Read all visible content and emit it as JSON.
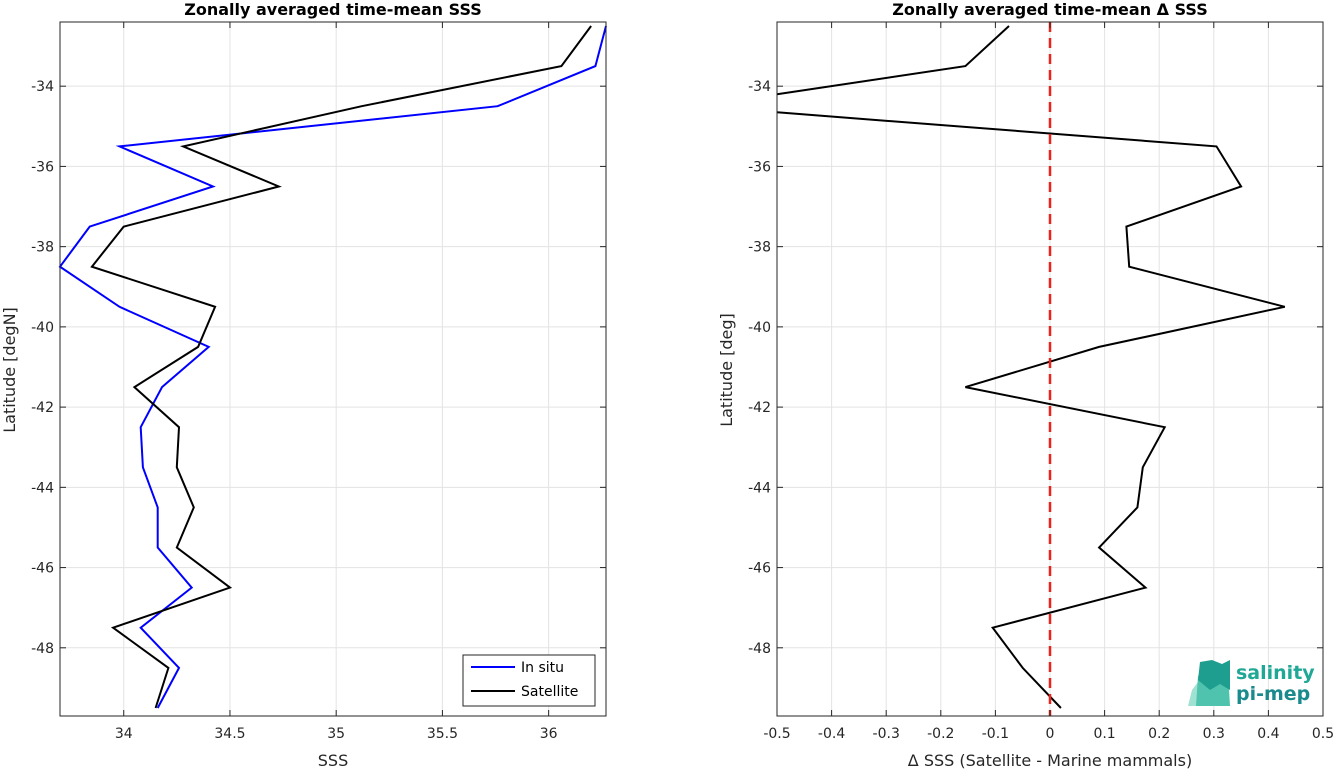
{
  "chart_data": [
    {
      "type": "line",
      "title": "Zonally averaged time-mean SSS",
      "xlabel": "SSS",
      "ylabel": "Latitude [degN]",
      "xlim": [
        33.7,
        36.27
      ],
      "ylim": [
        -49.7,
        -32.4
      ],
      "xticks": [
        34,
        34.5,
        35,
        35.5,
        36
      ],
      "xtick_labels": [
        "34",
        "34.5",
        "35",
        "35.5",
        "36"
      ],
      "yticks": [
        -48,
        -46,
        -44,
        -42,
        -40,
        -38,
        -36,
        -34
      ],
      "ytick_labels": [
        "-48",
        "-46",
        "-44",
        "-42",
        "-40",
        "-38",
        "-36",
        "-34"
      ],
      "grid": true,
      "legend": "bottom-right",
      "series": [
        {
          "name": "In situ",
          "color": "#0000ff",
          "points": [
            [
              36.27,
              -32.5
            ],
            [
              36.22,
              -33.5
            ],
            [
              35.76,
              -34.5
            ],
            [
              33.98,
              -35.5
            ],
            [
              34.42,
              -36.5
            ],
            [
              33.84,
              -37.5
            ],
            [
              33.7,
              -38.5
            ],
            [
              33.98,
              -39.5
            ],
            [
              34.4,
              -40.5
            ],
            [
              34.18,
              -41.5
            ],
            [
              34.08,
              -42.5
            ],
            [
              34.09,
              -43.5
            ],
            [
              34.16,
              -44.5
            ],
            [
              34.16,
              -45.5
            ],
            [
              34.32,
              -46.5
            ],
            [
              34.08,
              -47.5
            ],
            [
              34.26,
              -48.5
            ],
            [
              34.16,
              -49.5
            ]
          ]
        },
        {
          "name": "Satellite",
          "color": "#000000",
          "points": [
            [
              36.2,
              -32.5
            ],
            [
              36.06,
              -33.5
            ],
            [
              35.12,
              -34.5
            ],
            [
              34.28,
              -35.5
            ],
            [
              34.73,
              -36.5
            ],
            [
              34.0,
              -37.5
            ],
            [
              33.85,
              -38.5
            ],
            [
              34.43,
              -39.5
            ],
            [
              34.35,
              -40.5
            ],
            [
              34.05,
              -41.5
            ],
            [
              34.26,
              -42.5
            ],
            [
              34.25,
              -43.5
            ],
            [
              34.33,
              -44.5
            ],
            [
              34.25,
              -45.5
            ],
            [
              34.5,
              -46.5
            ],
            [
              33.95,
              -47.5
            ],
            [
              34.21,
              -48.5
            ],
            [
              34.15,
              -49.5
            ]
          ]
        }
      ]
    },
    {
      "type": "line",
      "title": "Zonally averaged time-mean Δ SSS",
      "xlabel": "Δ SSS (Satellite - Marine mammals)",
      "ylabel": "Latitude [deg]",
      "xlim": [
        -0.5,
        0.5
      ],
      "ylim": [
        -49.7,
        -32.4
      ],
      "xticks": [
        -0.5,
        -0.4,
        -0.3,
        -0.2,
        -0.1,
        0,
        0.1,
        0.2,
        0.3,
        0.4,
        0.5
      ],
      "xtick_labels": [
        "-0.5",
        "-0.4",
        "-0.3",
        "-0.2",
        "-0.1",
        "0",
        "0.1",
        "0.2",
        "0.3",
        "0.4",
        "0.5"
      ],
      "yticks": [
        -48,
        -46,
        -44,
        -42,
        -40,
        -38,
        -36,
        -34
      ],
      "ytick_labels": [
        "-48",
        "-46",
        "-44",
        "-42",
        "-40",
        "-38",
        "-36",
        "-34"
      ],
      "grid": true,
      "zero_line_color": "#e8241c",
      "series": [
        {
          "color": "#000000",
          "segments": [
            [
              [
                -0.075,
                -32.5
              ],
              [
                -0.155,
                -33.5
              ],
              [
                -0.5,
                -34.2
              ]
            ],
            [
              [
                -0.5,
                -34.65
              ],
              [
                0.305,
                -35.5
              ],
              [
                0.35,
                -36.5
              ],
              [
                0.14,
                -37.5
              ],
              [
                0.145,
                -38.5
              ],
              [
                0.43,
                -39.5
              ],
              [
                0.09,
                -40.5
              ],
              [
                -0.155,
                -41.5
              ],
              [
                0.21,
                -42.5
              ],
              [
                0.17,
                -43.5
              ],
              [
                0.16,
                -44.5
              ],
              [
                0.09,
                -45.5
              ],
              [
                0.175,
                -46.5
              ],
              [
                -0.105,
                -47.5
              ],
              [
                -0.05,
                -48.5
              ],
              [
                0.02,
                -49.5
              ]
            ]
          ]
        }
      ]
    }
  ],
  "logo": {
    "line1": "salinity",
    "line2": "pi-mep"
  }
}
